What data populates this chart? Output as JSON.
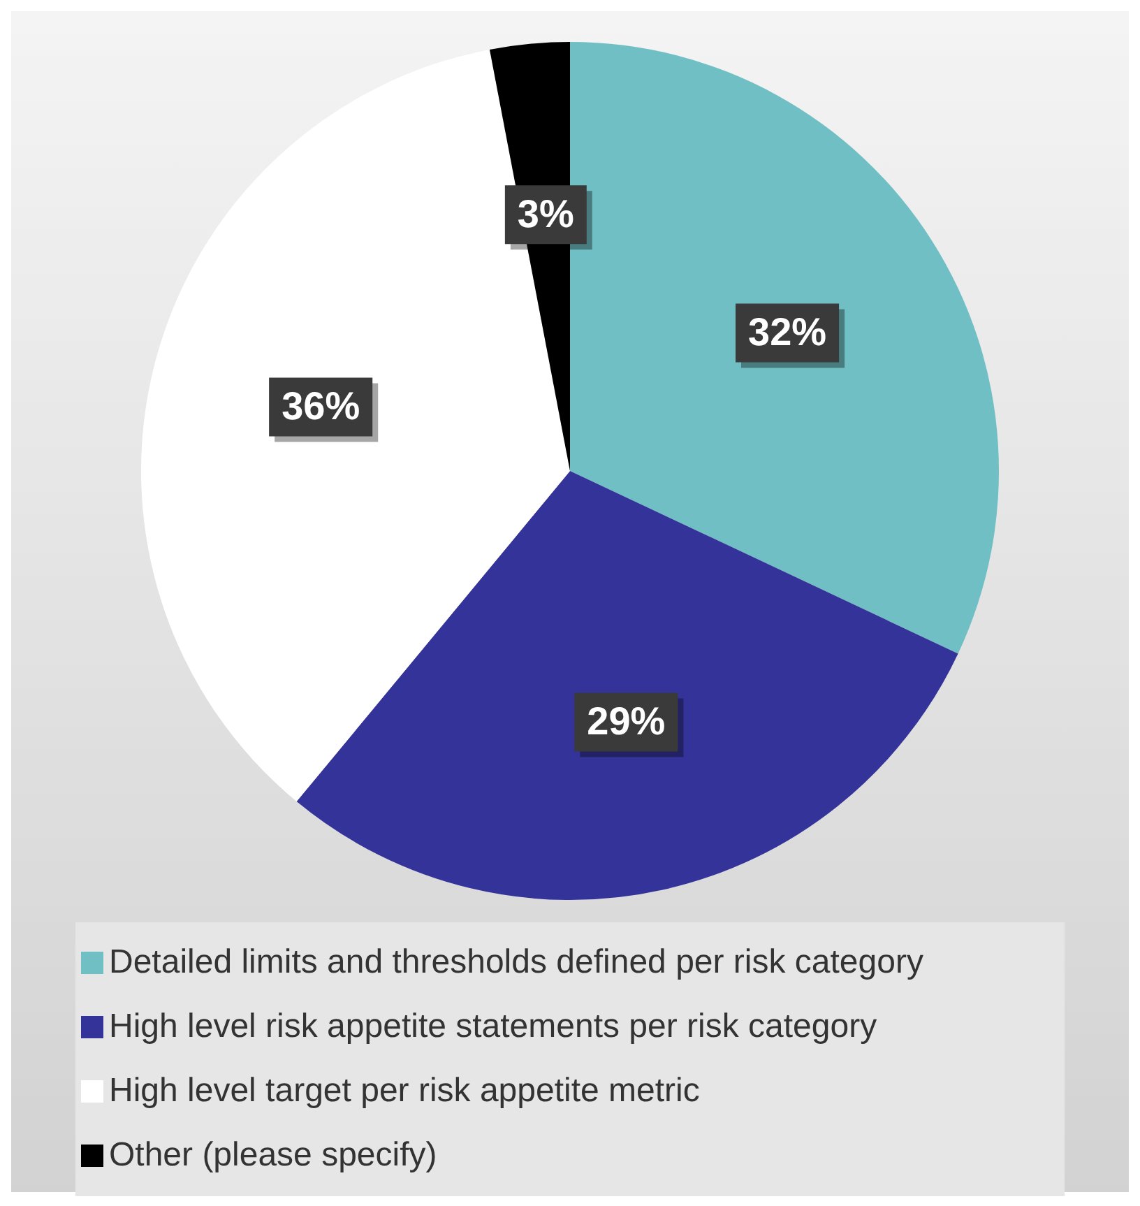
{
  "chart_data": {
    "type": "pie",
    "categories": [
      "Detailed limits and thresholds defined per risk category",
      "High level risk appetite statements per risk category",
      "High level target per risk appetite metric",
      "Other (please specify)"
    ],
    "values": [
      32,
      29,
      36,
      3
    ],
    "colors": [
      "#70bfc4",
      "#333399",
      "#ffffff",
      "#000000"
    ],
    "value_labels": [
      "32%",
      "29%",
      "36%",
      "3%"
    ],
    "legend": "bottom"
  }
}
